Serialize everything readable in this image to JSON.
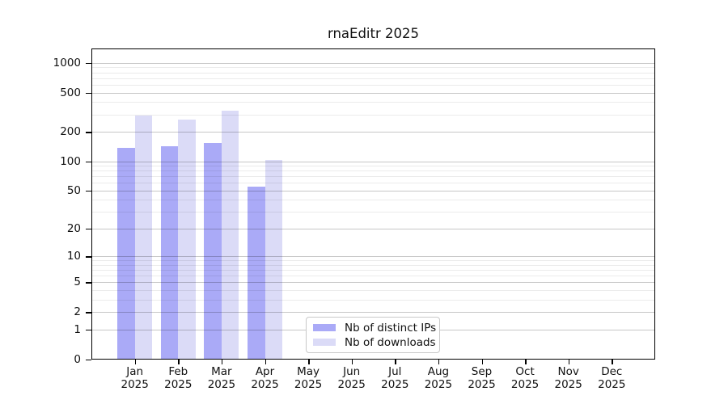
{
  "chart_data": {
    "type": "bar",
    "title": "rnaEditr 2025",
    "xlabel": "",
    "ylabel": "",
    "categories": [
      "Jan 2025",
      "Feb 2025",
      "Mar 2025",
      "Apr 2025",
      "May 2025",
      "Jun 2025",
      "Jul 2025",
      "Aug 2025",
      "Sep 2025",
      "Oct 2025",
      "Nov 2025",
      "Dec 2025"
    ],
    "series": [
      {
        "name": "Nb of distinct IPs",
        "color": "#aaaaf7",
        "values": [
          138,
          142,
          153,
          55,
          0,
          0,
          0,
          0,
          0,
          0,
          0,
          0
        ]
      },
      {
        "name": "Nb of downloads",
        "color": "#dbdbf7",
        "values": [
          295,
          265,
          325,
          104,
          0,
          0,
          0,
          0,
          0,
          0,
          0,
          0
        ]
      }
    ],
    "y_axis": {
      "scale": "log1p",
      "ticks": [
        0,
        1,
        2,
        5,
        10,
        20,
        50,
        100,
        200,
        500,
        1000
      ],
      "minor_gridlines": [
        3,
        4,
        6,
        7,
        8,
        9,
        30,
        40,
        60,
        70,
        80,
        90,
        300,
        400,
        600,
        700,
        800,
        900
      ],
      "max": 1400
    },
    "grid": true,
    "legend_position": "lower-center-inside"
  },
  "colors": {
    "bar_distinct_ips": "#aaaaf7",
    "bar_downloads": "#dbdbf7",
    "major_grid": "#cccccc",
    "minor_grid": "#ececec",
    "spine": "#000000",
    "legend_border": "#c9c9c9",
    "background": "#ffffff"
  }
}
